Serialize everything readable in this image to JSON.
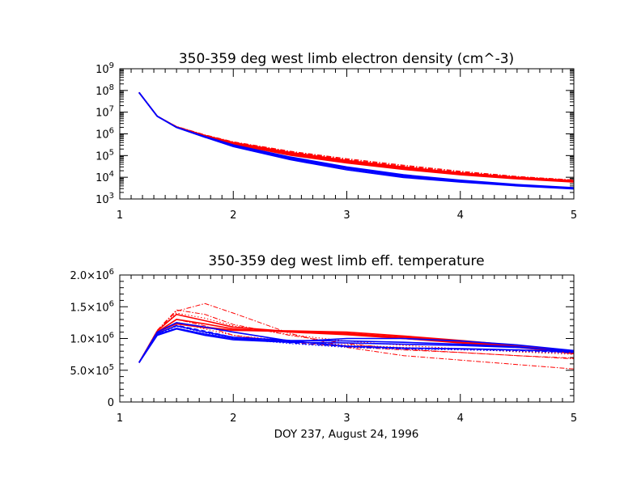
{
  "chart_data": [
    {
      "type": "line",
      "title": "350-359 deg west limb electron density (cm^-3)",
      "xlabel": "",
      "ylabel": "",
      "xlim": [
        1,
        5
      ],
      "ylim": [
        1000,
        1000000000
      ],
      "yscale": "log",
      "x_ticks": [
        "1",
        "2",
        "3",
        "4",
        "5"
      ],
      "y_ticks": [
        {
          "base": "10",
          "exp": "3"
        },
        {
          "base": "10",
          "exp": "4"
        },
        {
          "base": "10",
          "exp": "5"
        },
        {
          "base": "10",
          "exp": "6"
        },
        {
          "base": "10",
          "exp": "7"
        },
        {
          "base": "10",
          "exp": "8"
        },
        {
          "base": "10",
          "exp": "9"
        }
      ],
      "x": [
        1.17,
        1.33,
        1.5,
        1.75,
        2.0,
        2.5,
        3.0,
        3.5,
        4.0,
        4.5,
        5.0
      ],
      "series": [
        {
          "color": "#ff0000",
          "style": "solid",
          "values": [
            80000000,
            6500000,
            2100000,
            850000,
            400000,
            140000,
            60000,
            30000,
            16000,
            10000,
            7000
          ]
        },
        {
          "color": "#ff0000",
          "style": "solid",
          "values": [
            80000000,
            6500000,
            2100000,
            820000,
            370000,
            125000,
            54000,
            27000,
            15000,
            9500,
            6500
          ]
        },
        {
          "color": "#ff0000",
          "style": "solid",
          "values": [
            80000000,
            6500000,
            2100000,
            800000,
            350000,
            115000,
            50000,
            25000,
            14000,
            9000,
            6200
          ]
        },
        {
          "color": "#ff0000",
          "style": "solid",
          "values": [
            80000000,
            6500000,
            2050000,
            780000,
            330000,
            105000,
            46000,
            23000,
            13000,
            8500,
            6000
          ]
        },
        {
          "color": "#ff0000",
          "style": "dashdot",
          "values": [
            80000000,
            6500000,
            2200000,
            900000,
            430000,
            160000,
            72000,
            36000,
            19000,
            11000,
            7500
          ]
        },
        {
          "color": "#ff0000",
          "style": "dashdot",
          "values": [
            80000000,
            6500000,
            2150000,
            870000,
            410000,
            150000,
            66000,
            33000,
            17500,
            10500,
            7200
          ]
        },
        {
          "color": "#ff0000",
          "style": "dotted",
          "values": [
            80000000,
            6500000,
            2100000,
            840000,
            390000,
            135000,
            58000,
            29000,
            15500,
            9800,
            6800
          ]
        },
        {
          "color": "#0000ff",
          "style": "solid",
          "values": [
            80000000,
            6500000,
            2000000,
            720000,
            280000,
            72000,
            25000,
            11000,
            6500,
            4200,
            3000
          ]
        },
        {
          "color": "#0000ff",
          "style": "solid",
          "values": [
            80000000,
            6500000,
            1950000,
            700000,
            260000,
            65000,
            22000,
            9800,
            6000,
            4000,
            2900
          ]
        },
        {
          "color": "#0000ff",
          "style": "solid",
          "values": [
            80000000,
            6500000,
            2000000,
            740000,
            300000,
            80000,
            28000,
            12000,
            7000,
            4500,
            3200
          ]
        },
        {
          "color": "#0000ff",
          "style": "solid",
          "values": [
            80000000,
            6500000,
            2000000,
            760000,
            310000,
            86000,
            30000,
            13000,
            7300,
            4600,
            3300
          ]
        }
      ]
    },
    {
      "type": "line",
      "title": "350-359 deg west limb eff. temperature",
      "xlabel": "DOY 237, August 24, 1996",
      "ylabel": "",
      "xlim": [
        1,
        5
      ],
      "ylim": [
        0,
        2000000
      ],
      "x_ticks": [
        "1",
        "2",
        "3",
        "4",
        "5"
      ],
      "y_ticks": [
        {
          "value": 0,
          "mant": "0",
          "base": "",
          "exp": ""
        },
        {
          "value": 500000,
          "mant": "5.0×",
          "base": "10",
          "exp": "5"
        },
        {
          "value": 1000000,
          "mant": "1.0×",
          "base": "10",
          "exp": "6"
        },
        {
          "value": 1500000,
          "mant": "1.5×",
          "base": "10",
          "exp": "6"
        },
        {
          "value": 2000000,
          "mant": "2.0×",
          "base": "10",
          "exp": "6"
        }
      ],
      "x": [
        1.17,
        1.33,
        1.5,
        1.75,
        2.0,
        2.5,
        3.0,
        3.5,
        4.0,
        4.5,
        5.0
      ],
      "series": [
        {
          "color": "#ff0000",
          "style": "solid",
          "values": [
            620000,
            1100000,
            1250000,
            1180000,
            1130000,
            1110000,
            1080000,
            1020000,
            960000,
            880000,
            800000
          ]
        },
        {
          "color": "#ff0000",
          "style": "solid",
          "values": [
            620000,
            1100000,
            1230000,
            1170000,
            1130000,
            1120000,
            1100000,
            1040000,
            970000,
            890000,
            790000
          ]
        },
        {
          "color": "#ff0000",
          "style": "solid",
          "values": [
            620000,
            1120000,
            1380000,
            1280000,
            1180000,
            1110000,
            1070000,
            1000000,
            930000,
            860000,
            780000
          ]
        },
        {
          "color": "#ff0000",
          "style": "solid",
          "values": [
            620000,
            1100000,
            1300000,
            1230000,
            1150000,
            1100000,
            1060000,
            1000000,
            940000,
            870000,
            760000
          ]
        },
        {
          "color": "#ff0000",
          "style": "dashdot",
          "values": [
            620000,
            1130000,
            1450000,
            1380000,
            1220000,
            1050000,
            920000,
            830000,
            780000,
            730000,
            680000
          ]
        },
        {
          "color": "#ff0000",
          "style": "dashdot",
          "values": [
            620000,
            1120000,
            1430000,
            1550000,
            1400000,
            1080000,
            860000,
            730000,
            660000,
            590000,
            520000
          ]
        },
        {
          "color": "#ff0000",
          "style": "dashdot",
          "values": [
            620000,
            1100000,
            1300000,
            1200000,
            1050000,
            940000,
            870000,
            820000,
            780000,
            730000,
            690000
          ]
        },
        {
          "color": "#ff0000",
          "style": "dotted",
          "values": [
            620000,
            1120000,
            1400000,
            1320000,
            1200000,
            1060000,
            960000,
            890000,
            840000,
            790000,
            750000
          ]
        },
        {
          "color": "#ff0000",
          "style": "dotted",
          "values": [
            620000,
            1100000,
            1250000,
            1150000,
            1050000,
            960000,
            900000,
            860000,
            830000,
            800000,
            770000
          ]
        },
        {
          "color": "#0000ff",
          "style": "solid",
          "values": [
            620000,
            1050000,
            1150000,
            1050000,
            980000,
            940000,
            930000,
            910000,
            890000,
            860000,
            800000
          ]
        },
        {
          "color": "#0000ff",
          "style": "solid",
          "values": [
            620000,
            1080000,
            1200000,
            1100000,
            1020000,
            970000,
            960000,
            940000,
            910000,
            870000,
            790000
          ]
        },
        {
          "color": "#0000ff",
          "style": "solid",
          "values": [
            620000,
            1060000,
            1160000,
            1070000,
            1000000,
            950000,
            1000000,
            1000000,
            960000,
            900000,
            810000
          ]
        },
        {
          "color": "#0000ff",
          "style": "solid",
          "values": [
            620000,
            1100000,
            1250000,
            1180000,
            1100000,
            960000,
            880000,
            850000,
            840000,
            820000,
            790000
          ]
        },
        {
          "color": "#0000ff",
          "style": "dashed",
          "values": [
            620000,
            1070000,
            1210000,
            1120000,
            1020000,
            930000,
            870000,
            840000,
            830000,
            810000,
            780000
          ]
        },
        {
          "color": "#0000ff",
          "style": "dotted",
          "values": [
            620000,
            1060000,
            1190000,
            1090000,
            1000000,
            920000,
            860000,
            830000,
            820000,
            800000,
            770000
          ]
        }
      ]
    }
  ]
}
